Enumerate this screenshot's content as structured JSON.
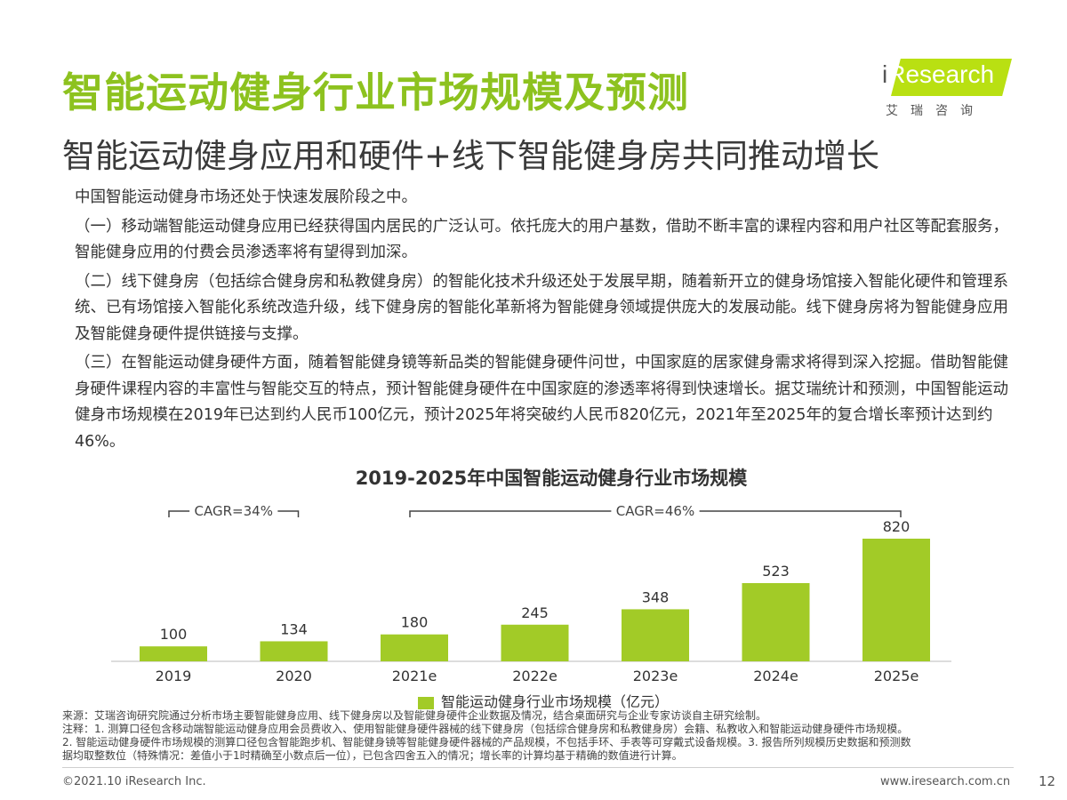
{
  "header": {
    "title": "智能运动健身行业市场规模及预测",
    "subtitle": "智能运动健身应用和硬件+线下智能健身房共同推动增长"
  },
  "logo": {
    "text_i": "i",
    "text_main": "Research",
    "text_cn": "艾瑞咨询"
  },
  "body": {
    "paragraphs": [
      "中国智能运动健身市场还处于快速发展阶段之中。",
      "（一）移动端智能运动健身应用已经获得国内居民的广泛认可。依托庞大的用户基数，借助不断丰富的课程内容和用户社区等配套服务，智能健身应用的付费会员渗透率将有望得到加深。",
      "（二）线下健身房（包括综合健身房和私教健身房）的智能化技术升级还处于发展早期，随着新开立的健身场馆接入智能化硬件和管理系统、已有场馆接入智能化系统改造升级，线下健身房的智能化革新将为智能健身领域提供庞大的发展动能。线下健身房将为智能健身应用及智能健身硬件提供链接与支撑。",
      "（三）在智能运动健身硬件方面，随着智能健身镜等新品类的智能健身硬件问世，中国家庭的居家健身需求将得到深入挖掘。借助智能健身硬件课程内容的丰富性与智能交互的特点，预计智能健身硬件在中国家庭的渗透率将得到快速增长。据艾瑞统计和预测，中国智能运动健身市场规模在2019年已达到约人民币100亿元，预计2025年将突破约人民币820亿元，2021年至2025年的复合增长率预计达到约46%。"
    ]
  },
  "chart_data": {
    "type": "bar",
    "title": "2019-2025年中国智能运动健身行业市场规模",
    "categories": [
      "2019",
      "2020",
      "2021e",
      "2022e",
      "2023e",
      "2024e",
      "2025e"
    ],
    "series": [
      {
        "name": "智能运动健身行业市场规模（亿元）",
        "values": [
          100,
          134,
          180,
          245,
          348,
          523,
          820
        ]
      }
    ],
    "ylim": [
      0,
      820
    ],
    "grid": false,
    "legend": "bottom",
    "color": "#a2cb27",
    "annotations": [
      {
        "label": "CAGR=34%",
        "from_category": "2019",
        "to_category": "2020"
      },
      {
        "label": "CAGR=46%",
        "from_category": "2021e",
        "to_category": "2025e"
      }
    ]
  },
  "notes": {
    "source": "来源：艾瑞咨询研究院通过分析市场主要智能健身应用、线下健身房以及智能健身硬件企业数据及情况，结合桌面研究与企业专家访谈自主研究绘制。",
    "note1": "注释：1. 测算口径包含移动端智能运动健身应用会员费收入、使用智能健身硬件器械的线下健身房（包括综合健身房和私教健身房）会籍、私教收入和智能运动健身硬件市场规模。",
    "note2": "2. 智能运动健身硬件市场规模的测算口径包含智能跑步机、智能健身镜等智能健身硬件器械的产品规模，不包括手环、手表等可穿戴式设备规模。3. 报告所列规模历史数据和预测数",
    "note3": "据均取整数位（特殊情况：差值小于1时精确至小数点后一位），已包含四舍五入的情况；增长率的计算均基于精确的数值进行计算。"
  },
  "footer": {
    "copyright": "©2021.10 iResearch Inc.",
    "website": "www.iresearch.com.cn",
    "page": "12"
  }
}
